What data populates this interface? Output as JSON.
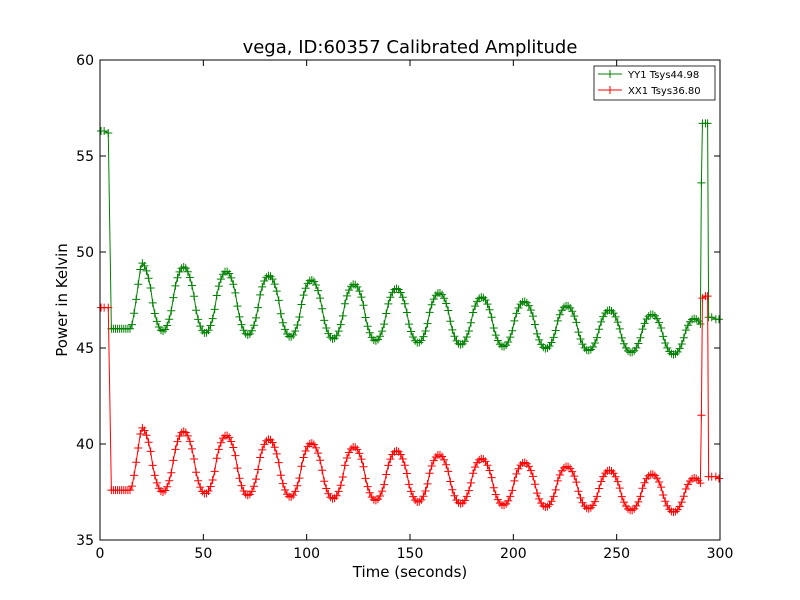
{
  "chart_data": {
    "type": "line",
    "title": "vega, ID:60357 Calibrated Amplitude",
    "xlabel": "Time (seconds)",
    "ylabel": "Power in Kelvin",
    "xlim": [
      0,
      300
    ],
    "ylim": [
      35,
      60
    ],
    "xticks": [
      0,
      50,
      100,
      150,
      200,
      250,
      300
    ],
    "yticks": [
      35,
      40,
      45,
      50,
      55,
      60
    ],
    "grid": false,
    "legend_position": "top-right",
    "marker": "+",
    "series": [
      {
        "name": "YY1 Tsys44.98",
        "color": "#008000",
        "start": [
          [
            0.5,
            56.3
          ],
          [
            2,
            56.3
          ],
          [
            4,
            56.2
          ]
        ],
        "oscillation": {
          "t_start": 5.5,
          "t_end": 290.5,
          "period": 20.6,
          "first_peak_t": 20,
          "peak_start": 49.6,
          "peak_end": 46.5,
          "trough_start": 46.0,
          "trough_end": 44.6
        },
        "end": [
          [
            291,
            53.6
          ],
          [
            291.5,
            56.7
          ],
          [
            293,
            56.7
          ],
          [
            294,
            56.7
          ],
          [
            294.5,
            46.6
          ],
          [
            296,
            46.6
          ],
          [
            298,
            46.5
          ],
          [
            299.5,
            46.5
          ]
        ]
      },
      {
        "name": "XX1 Tsys36.80",
        "color": "#ff0000",
        "start": [
          [
            0.5,
            47.1
          ],
          [
            2,
            47.1
          ],
          [
            4,
            47.1
          ]
        ],
        "oscillation": {
          "t_start": 5.5,
          "t_end": 290.5,
          "period": 20.6,
          "first_peak_t": 20,
          "peak_start": 41.0,
          "peak_end": 38.2,
          "trough_start": 37.6,
          "trough_end": 36.4
        },
        "end": [
          [
            291,
            41.5
          ],
          [
            291.5,
            47.6
          ],
          [
            293,
            47.7
          ],
          [
            294,
            47.7
          ],
          [
            294.5,
            38.3
          ],
          [
            296,
            38.3
          ],
          [
            298,
            38.3
          ],
          [
            299.5,
            38.2
          ]
        ]
      }
    ]
  }
}
